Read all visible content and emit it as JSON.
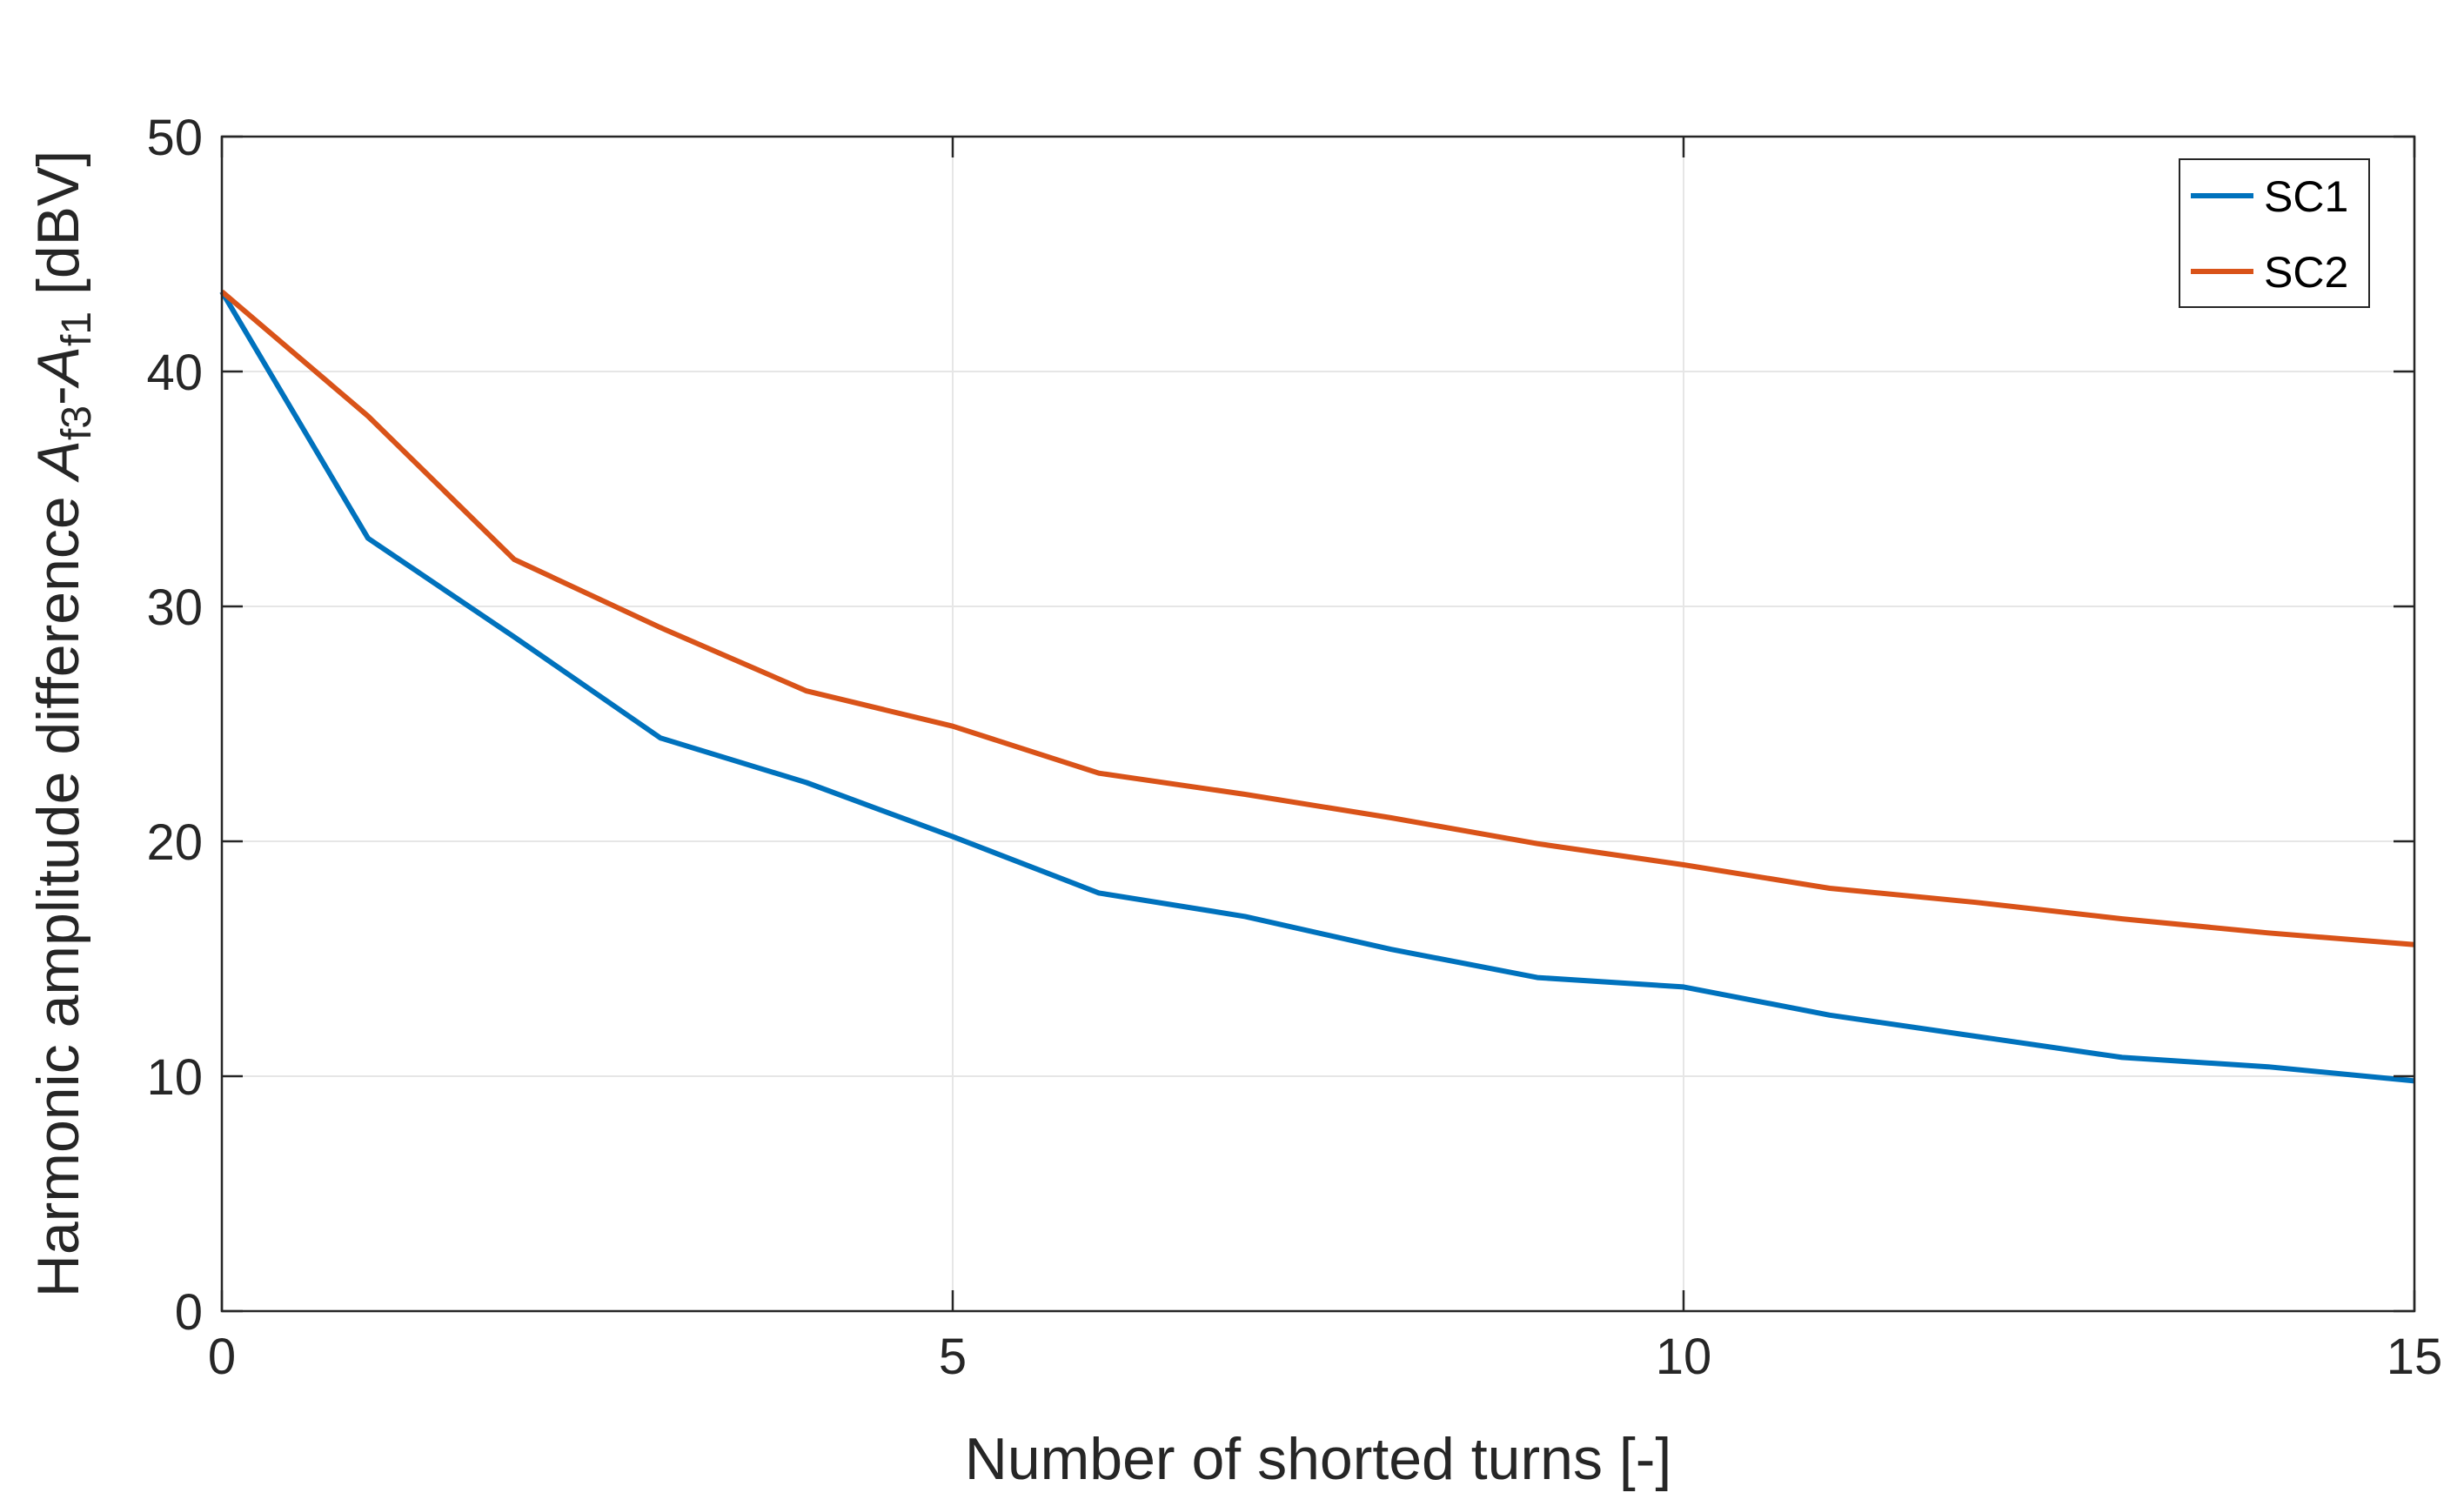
{
  "chart_data": {
    "type": "line",
    "title": "",
    "xlabel": "Number of shorted turns [-]",
    "ylabel": {
      "prefix": "Harmonic amplitude difference ",
      "var1": "A",
      "sub1": "f3",
      "minus": "-",
      "var2": "A",
      "sub2": "f1",
      "unit": " [dBV]"
    },
    "xlim": [
      0,
      15
    ],
    "ylim": [
      0,
      50
    ],
    "xticks": [
      0,
      5,
      10,
      15
    ],
    "yticks": [
      0,
      10,
      20,
      30,
      40,
      50
    ],
    "grid": true,
    "legend_position": "top-right",
    "x": [
      0,
      1,
      2,
      3,
      4,
      5,
      6,
      7,
      8,
      9,
      10,
      11,
      12,
      13,
      14,
      15
    ],
    "series": [
      {
        "name": "SC1",
        "color": "#0072BD",
        "values": [
          43.4,
          32.9,
          28.7,
          24.4,
          22.5,
          20.2,
          17.8,
          16.8,
          15.4,
          14.2,
          13.8,
          12.6,
          11.7,
          10.8,
          10.4,
          9.8
        ]
      },
      {
        "name": "SC2",
        "color": "#D95319",
        "values": [
          43.4,
          38.1,
          32.0,
          29.1,
          26.4,
          24.9,
          22.9,
          22.0,
          21.0,
          19.9,
          19.0,
          18.0,
          17.4,
          16.7,
          16.1,
          15.6
        ]
      }
    ]
  }
}
